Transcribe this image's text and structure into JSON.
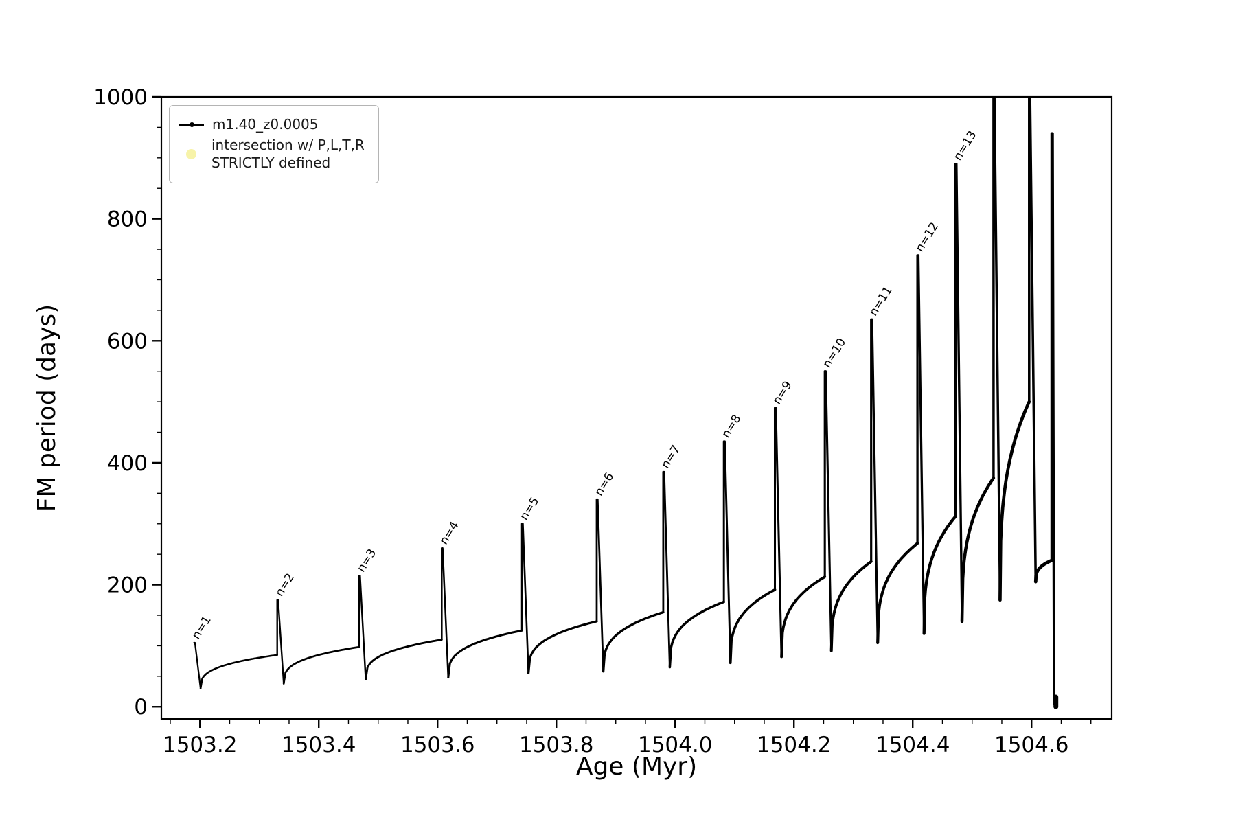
{
  "chart_data": {
    "type": "line",
    "title": "",
    "xlabel": "Age (Myr)",
    "ylabel": "FM period (days)",
    "xlim": [
      1503.135,
      1504.735
    ],
    "ylim": [
      -20,
      1000
    ],
    "xticks": [
      1503.2,
      1503.4,
      1503.6,
      1503.8,
      1504.0,
      1504.2,
      1504.4,
      1504.6
    ],
    "xtick_labels": [
      "1503.2",
      "1503.4",
      "1503.6",
      "1503.8",
      "1504.0",
      "1504.2",
      "1504.4",
      "1504.6"
    ],
    "yticks": [
      0,
      200,
      400,
      600,
      800,
      1000
    ],
    "ytick_labels": [
      "0",
      "200",
      "400",
      "600",
      "800",
      "1000"
    ],
    "x_minor_step": 0.05,
    "y_minor_step": 50,
    "grid": false,
    "line_color": "#000000",
    "background_color": "#ffffff",
    "legend": {
      "position": "upper-left",
      "entries": [
        {
          "label": "m1.40_z0.0005",
          "marker": "line-with-dot",
          "color": "#000000"
        },
        {
          "label_line1": "intersection w/ P,L,T,R",
          "label_line2": "STRICTLY defined",
          "marker": "dot",
          "color": "#f7f3a9"
        }
      ]
    },
    "series": [
      {
        "name": "m1.40_z0.0005",
        "description": "thermal-pulse-like curve: saturating rises between narrow vertical spikes of increasing height, spikes labeled n=1..n=13, last two spikes clipped at top, final spike drops to ~0",
        "spikes": [
          {
            "label": "n=1",
            "x": 1503.19,
            "peak": 105,
            "base_before": 105,
            "min_after": 30
          },
          {
            "label": "n=2",
            "x": 1503.33,
            "peak": 175,
            "base_before": 85,
            "min_after": 38
          },
          {
            "label": "n=3",
            "x": 1503.468,
            "peak": 215,
            "base_before": 98,
            "min_after": 45
          },
          {
            "label": "n=4",
            "x": 1503.607,
            "peak": 260,
            "base_before": 110,
            "min_after": 48
          },
          {
            "label": "n=5",
            "x": 1503.742,
            "peak": 300,
            "base_before": 125,
            "min_after": 55
          },
          {
            "label": "n=6",
            "x": 1503.868,
            "peak": 340,
            "base_before": 140,
            "min_after": 58
          },
          {
            "label": "n=7",
            "x": 1503.98,
            "peak": 385,
            "base_before": 155,
            "min_after": 65
          },
          {
            "label": "n=8",
            "x": 1504.082,
            "peak": 435,
            "base_before": 172,
            "min_after": 72
          },
          {
            "label": "n=9",
            "x": 1504.168,
            "peak": 490,
            "base_before": 192,
            "min_after": 82
          },
          {
            "label": "n=10",
            "x": 1504.252,
            "peak": 550,
            "base_before": 213,
            "min_after": 92
          },
          {
            "label": "n=11",
            "x": 1504.33,
            "peak": 635,
            "base_before": 238,
            "min_after": 105
          },
          {
            "label": "n=12",
            "x": 1504.408,
            "peak": 740,
            "base_before": 268,
            "min_after": 120
          },
          {
            "label": "n=13",
            "x": 1504.472,
            "peak": 890,
            "base_before": 312,
            "min_after": 140
          },
          {
            "label": "",
            "x": 1504.536,
            "peak": 1000,
            "base_before": 375,
            "min_after": 175,
            "clipped": true
          },
          {
            "label": "",
            "x": 1504.596,
            "peak": 1000,
            "base_before": 500,
            "min_after": 205,
            "clipped": true
          },
          {
            "label": "",
            "x": 1504.634,
            "peak": 940,
            "base_before": 240,
            "min_after": 5,
            "final": true
          }
        ]
      }
    ]
  }
}
